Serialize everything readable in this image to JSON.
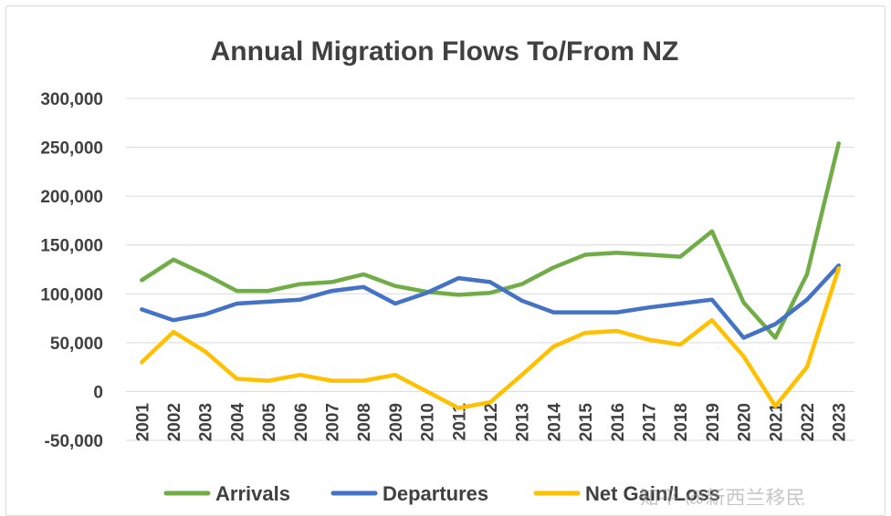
{
  "chart_data": {
    "type": "line",
    "title": "Annual Migration Flows To/From NZ",
    "xlabel": "",
    "ylabel": "",
    "ylim": [
      -50000,
      300000
    ],
    "yticks": [
      -50000,
      0,
      50000,
      100000,
      150000,
      200000,
      250000,
      300000
    ],
    "ytick_labels": [
      "-50,000",
      "0",
      "50,000",
      "100,000",
      "150,000",
      "200,000",
      "250,000",
      "300,000"
    ],
    "categories": [
      "2001",
      "2002",
      "2003",
      "2004",
      "2005",
      "2006",
      "2007",
      "2008",
      "2009",
      "2010",
      "2011",
      "2012",
      "2013",
      "2014",
      "2015",
      "2016",
      "2017",
      "2018",
      "2019",
      "2020",
      "2021",
      "2022",
      "2023"
    ],
    "grid": true,
    "legend_position": "bottom",
    "series": [
      {
        "name": "Arrivals",
        "color": "#70ad47",
        "values": [
          114000,
          135000,
          120000,
          103000,
          103000,
          110000,
          112000,
          120000,
          108000,
          102000,
          99000,
          101000,
          110000,
          127000,
          140000,
          142000,
          140000,
          138000,
          164000,
          91000,
          55000,
          120000,
          254000
        ]
      },
      {
        "name": "Departures",
        "color": "#4472c4",
        "values": [
          84000,
          73000,
          79000,
          90000,
          92000,
          94000,
          103000,
          107000,
          90000,
          101000,
          116000,
          112000,
          93000,
          81000,
          81000,
          81000,
          86000,
          90000,
          94000,
          55000,
          69000,
          94000,
          129000
        ]
      },
      {
        "name": "Net Gain/Loss",
        "color": "#ffc000",
        "values": [
          30000,
          61000,
          41000,
          13000,
          11000,
          17000,
          11000,
          11000,
          17000,
          0,
          -17000,
          -11000,
          17000,
          46000,
          60000,
          62000,
          53000,
          48000,
          73000,
          36000,
          -15000,
          25000,
          126000
        ]
      }
    ]
  },
  "watermark_text": "知乎 @新西兰移民"
}
